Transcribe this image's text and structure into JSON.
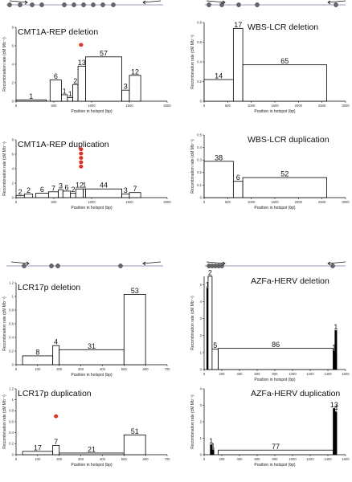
{
  "figure": {
    "panels": [
      {
        "id": "cmt1a",
        "dot_color": "#666666"
      },
      {
        "id": "wbs",
        "dot_color": "#666666"
      },
      {
        "id": "lcr17p",
        "dot_color": "#666666"
      },
      {
        "id": "azfa",
        "dot_color": "#666666"
      }
    ]
  },
  "chart_data": [
    {
      "type": "bar",
      "id": "cmt1a-del",
      "title": "CMT1A-REP deletion",
      "xlabel": "Position in hotspot (bp)",
      "ylabel": "Recombination rate (cM Mb⁻¹)",
      "xlim": [
        0,
        2000
      ],
      "ylim": [
        0,
        8
      ],
      "xticks": [
        0,
        500,
        1000,
        1500,
        2000
      ],
      "yticks": [
        0,
        2,
        4,
        6,
        8
      ],
      "bars": [
        {
          "x0": 0,
          "x1": 400,
          "y": 0.15,
          "count": "1"
        },
        {
          "x0": 450,
          "x1": 600,
          "y": 2.3,
          "count": "6"
        },
        {
          "x0": 600,
          "x1": 680,
          "y": 0.7,
          "count": "1"
        },
        {
          "x0": 680,
          "x1": 750,
          "y": 0.4,
          "count": "1"
        },
        {
          "x0": 750,
          "x1": 820,
          "y": 1.8,
          "count": "2"
        },
        {
          "x0": 820,
          "x1": 920,
          "y": 3.8,
          "count": "13"
        },
        {
          "x0": 920,
          "x1": 1400,
          "y": 4.8,
          "count": "57"
        },
        {
          "x0": 1400,
          "x1": 1500,
          "y": 1.2,
          "count": "3"
        },
        {
          "x0": 1500,
          "x1": 1650,
          "y": 2.8,
          "count": "12"
        }
      ],
      "markers": [
        {
          "x": 860,
          "y": 6.1
        }
      ],
      "marker_color": "#dd3322"
    },
    {
      "type": "bar",
      "id": "cmt1a-dup",
      "title": "CMT1A-REP duplication",
      "xlabel": "Position in hotspot (bp)",
      "ylabel": "Recombination rate (cM Mb⁻¹)",
      "xlim": [
        0,
        2000
      ],
      "ylim": [
        0,
        8
      ],
      "xticks": [
        0,
        500,
        1000,
        1500,
        2000
      ],
      "yticks": [
        0,
        2,
        4,
        6,
        8
      ],
      "bars": [
        {
          "x0": 0,
          "x1": 110,
          "y": 0.3,
          "count": "2"
        },
        {
          "x0": 110,
          "x1": 220,
          "y": 0.5,
          "count": "2"
        },
        {
          "x0": 260,
          "x1": 430,
          "y": 0.6,
          "count": "6"
        },
        {
          "x0": 430,
          "x1": 560,
          "y": 0.8,
          "count": "7"
        },
        {
          "x0": 560,
          "x1": 620,
          "y": 1.1,
          "count": "3"
        },
        {
          "x0": 620,
          "x1": 720,
          "y": 0.9,
          "count": "6"
        },
        {
          "x0": 720,
          "x1": 790,
          "y": 0.6,
          "count": "2"
        },
        {
          "x0": 790,
          "x1": 890,
          "y": 1.2,
          "count": "12"
        },
        {
          "x0": 890,
          "x1": 920,
          "y": 1.2,
          "count": "1"
        },
        {
          "x0": 920,
          "x1": 1400,
          "y": 1.2,
          "count": "44"
        },
        {
          "x0": 1400,
          "x1": 1500,
          "y": 0.5,
          "count": "3"
        },
        {
          "x0": 1500,
          "x1": 1650,
          "y": 0.7,
          "count": "7"
        }
      ],
      "markers": [
        {
          "x": 860,
          "y": 4.3
        },
        {
          "x": 860,
          "y": 4.9
        },
        {
          "x": 860,
          "y": 5.5
        },
        {
          "x": 860,
          "y": 6.1
        },
        {
          "x": 860,
          "y": 6.7
        }
      ],
      "marker_color": "#dd3322"
    },
    {
      "type": "bar",
      "id": "wbs-del",
      "title": "WBS-LCR deletion",
      "xlabel": "Position in hotspot (bp)",
      "ylabel": "Recombination rate (cM Mb⁻¹)",
      "xlim": [
        0,
        3000
      ],
      "ylim": [
        0,
        0.8
      ],
      "xticks": [
        0,
        500,
        1000,
        1500,
        2000,
        2500,
        3000
      ],
      "yticks": [
        0,
        0.2,
        0.4,
        0.6,
        0.8
      ],
      "bars": [
        {
          "x0": 0,
          "x1": 620,
          "y": 0.22,
          "count": "14"
        },
        {
          "x0": 620,
          "x1": 820,
          "y": 0.74,
          "count": "17"
        },
        {
          "x0": 820,
          "x1": 2600,
          "y": 0.37,
          "count": "65"
        }
      ],
      "markers": [],
      "marker_color": "#dd3322"
    },
    {
      "type": "bar",
      "id": "wbs-dup",
      "title": "WBS-LCR duplication",
      "xlabel": "Position in hotspot (bp)",
      "ylabel": "Recombination rate (cM Mb⁻¹)",
      "xlim": [
        0,
        3000
      ],
      "ylim": [
        0,
        0.5
      ],
      "xticks": [
        0,
        500,
        1000,
        1500,
        2000,
        2500,
        3000
      ],
      "yticks": [
        0,
        0.1,
        0.2,
        0.3,
        0.4,
        0.5
      ],
      "bars": [
        {
          "x0": 0,
          "x1": 620,
          "y": 0.29,
          "count": "38"
        },
        {
          "x0": 620,
          "x1": 820,
          "y": 0.13,
          "count": "6"
        },
        {
          "x0": 820,
          "x1": 2600,
          "y": 0.16,
          "count": "52"
        }
      ],
      "markers": [],
      "marker_color": "#dd3322"
    },
    {
      "type": "bar",
      "id": "lcr17p-del",
      "title": "LCR17p deletion",
      "xlabel": "Position in hotspot (bp)",
      "ylabel": "Recombination rate (cM Mb⁻¹)",
      "xlim": [
        0,
        700
      ],
      "ylim": [
        0,
        1.2
      ],
      "xticks": [
        0,
        100,
        200,
        300,
        400,
        500,
        600,
        700
      ],
      "yticks": [
        0,
        0.2,
        0.4,
        0.6,
        0.8,
        1,
        1.2
      ],
      "bars": [
        {
          "x0": 30,
          "x1": 170,
          "y": 0.13,
          "count": "8"
        },
        {
          "x0": 170,
          "x1": 200,
          "y": 0.28,
          "count": "4"
        },
        {
          "x0": 200,
          "x1": 500,
          "y": 0.22,
          "count": "31"
        },
        {
          "x0": 500,
          "x1": 600,
          "y": 1.03,
          "count": "53"
        }
      ],
      "markers": [],
      "marker_color": "#dd3322"
    },
    {
      "type": "bar",
      "id": "lcr17p-dup",
      "title": "LCR17p duplication",
      "xlabel": "Position in hotspot (bp)",
      "ylabel": "Recombination rate (cM Mb⁻¹)",
      "xlim": [
        0,
        700
      ],
      "ylim": [
        0,
        1.2
      ],
      "xticks": [
        0,
        100,
        200,
        300,
        400,
        500,
        600,
        700
      ],
      "yticks": [
        0,
        0.2,
        0.4,
        0.6,
        0.8,
        1,
        1.2
      ],
      "bars": [
        {
          "x0": 30,
          "x1": 170,
          "y": 0.06,
          "count": "17"
        },
        {
          "x0": 170,
          "x1": 200,
          "y": 0.17,
          "count": "7"
        },
        {
          "x0": 200,
          "x1": 500,
          "y": 0.03,
          "count": "21"
        },
        {
          "x0": 500,
          "x1": 600,
          "y": 0.36,
          "count": "51"
        }
      ],
      "markers": [
        {
          "x": 185,
          "y": 0.7
        }
      ],
      "marker_color": "#dd3322"
    },
    {
      "type": "bar",
      "id": "azfa-del",
      "title": "AZFa-HERV deletion",
      "xlabel": "Position in hotspot (bp)",
      "ylabel": "Recombination rate (cM Mb⁻¹)",
      "xlim": [
        0,
        1600
      ],
      "ylim": [
        0,
        5.5
      ],
      "xticks": [
        0,
        200,
        400,
        600,
        800,
        1000,
        1200,
        1400,
        1600
      ],
      "yticks": [
        0,
        1,
        2,
        3,
        4,
        5
      ],
      "bars": [
        {
          "x0": 30,
          "x1": 45,
          "y": 4.8,
          "count": "1"
        },
        {
          "x0": 45,
          "x1": 90,
          "y": 5.5,
          "count": "2"
        },
        {
          "x0": 90,
          "x1": 160,
          "y": 1.2,
          "count": "5"
        },
        {
          "x0": 160,
          "x1": 1460,
          "y": 1.25,
          "count": "86"
        },
        {
          "x0": 1460,
          "x1": 1480,
          "y": 1.1,
          "count": "1"
        },
        {
          "x0": 1480,
          "x1": 1500,
          "y": 2.3,
          "count": "1"
        }
      ],
      "markers": [],
      "marker_color": "#dd3322",
      "thin_filled": true
    },
    {
      "type": "bar",
      "id": "azfa-dup",
      "title": "AZFa-HERV duplication",
      "xlabel": "Position in hotspot (bp)",
      "ylabel": "Recombination rate (cM Mb⁻¹)",
      "xlim": [
        0,
        1600
      ],
      "ylim": [
        0,
        4
      ],
      "xticks": [
        0,
        200,
        400,
        600,
        800,
        1000,
        1200,
        1400,
        1600
      ],
      "yticks": [
        0,
        1,
        2,
        3,
        4
      ],
      "bars": [
        {
          "x0": 70,
          "x1": 90,
          "y": 0.6,
          "count": "1"
        },
        {
          "x0": 90,
          "x1": 110,
          "y": 0.3,
          "count": "1"
        },
        {
          "x0": 160,
          "x1": 1460,
          "y": 0.28,
          "count": "77"
        },
        {
          "x0": 1460,
          "x1": 1480,
          "y": 2.8,
          "count": "13"
        },
        {
          "x0": 1480,
          "x1": 1500,
          "y": 2.6,
          "count": "4"
        }
      ],
      "markers": [],
      "marker_color": "#dd3322",
      "thin_filled": true
    }
  ]
}
